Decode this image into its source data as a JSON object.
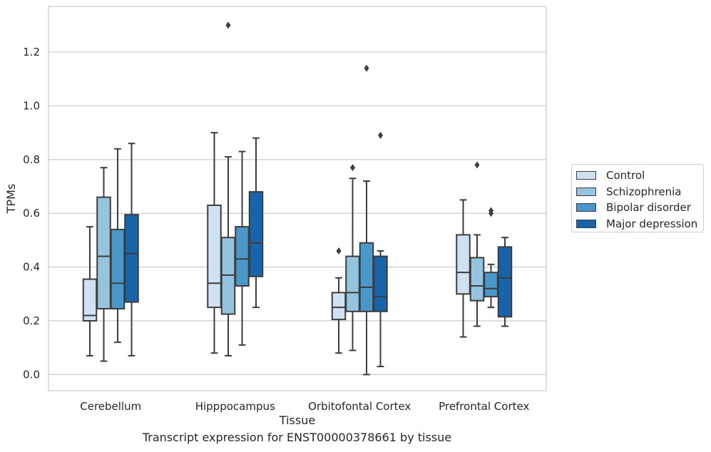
{
  "chart_data": {
    "type": "box",
    "title": "",
    "caption": "Transcript expression for ENST00000378661 by tissue",
    "xlabel": "Tissue",
    "ylabel": "TPMs",
    "ylim": [
      -0.06,
      1.37
    ],
    "yticks": [
      0.0,
      0.2,
      0.4,
      0.6,
      0.8,
      1.0,
      1.2
    ],
    "ytick_labels": [
      "0.0",
      "0.2",
      "0.4",
      "0.6",
      "0.8",
      "1.0",
      "1.2"
    ],
    "grid": "horizontal",
    "legend_position": "right",
    "categories": [
      "Cerebellum",
      "Hipppocampus",
      "Orbitofontal Cortex",
      "Prefrontal Cortex"
    ],
    "series": [
      {
        "name": "Control",
        "color": "#d0e1f2",
        "boxes": [
          {
            "whislo": 0.07,
            "q1": 0.2,
            "med": 0.22,
            "q3": 0.355,
            "whishi": 0.55,
            "fliers": []
          },
          {
            "whislo": 0.08,
            "q1": 0.25,
            "med": 0.34,
            "q3": 0.63,
            "whishi": 0.9,
            "fliers": []
          },
          {
            "whislo": 0.08,
            "q1": 0.205,
            "med": 0.25,
            "q3": 0.305,
            "whishi": 0.36,
            "fliers": [
              0.46
            ]
          },
          {
            "whislo": 0.14,
            "q1": 0.3,
            "med": 0.38,
            "q3": 0.52,
            "whishi": 0.65,
            "fliers": []
          }
        ]
      },
      {
        "name": "Schizophrenia",
        "color": "#94c4df",
        "boxes": [
          {
            "whislo": 0.05,
            "q1": 0.245,
            "med": 0.44,
            "q3": 0.66,
            "whishi": 0.77,
            "fliers": []
          },
          {
            "whislo": 0.07,
            "q1": 0.225,
            "med": 0.37,
            "q3": 0.51,
            "whishi": 0.81,
            "fliers": [
              1.3
            ]
          },
          {
            "whislo": 0.09,
            "q1": 0.235,
            "med": 0.305,
            "q3": 0.44,
            "whishi": 0.73,
            "fliers": [
              0.77
            ]
          },
          {
            "whislo": 0.18,
            "q1": 0.275,
            "med": 0.33,
            "q3": 0.435,
            "whishi": 0.52,
            "fliers": [
              0.78
            ]
          }
        ]
      },
      {
        "name": "Bipolar disorder",
        "color": "#4a98c9",
        "boxes": [
          {
            "whislo": 0.12,
            "q1": 0.245,
            "med": 0.34,
            "q3": 0.54,
            "whishi": 0.84,
            "fliers": []
          },
          {
            "whislo": 0.11,
            "q1": 0.33,
            "med": 0.43,
            "q3": 0.55,
            "whishi": 0.83,
            "fliers": []
          },
          {
            "whislo": 0.0,
            "q1": 0.235,
            "med": 0.325,
            "q3": 0.49,
            "whishi": 0.72,
            "fliers": [
              1.14
            ]
          },
          {
            "whislo": 0.25,
            "q1": 0.29,
            "med": 0.32,
            "q3": 0.38,
            "whishi": 0.41,
            "fliers": [
              0.6,
              0.61
            ]
          }
        ]
      },
      {
        "name": "Major depression",
        "color": "#1764ab",
        "boxes": [
          {
            "whislo": 0.07,
            "q1": 0.27,
            "med": 0.45,
            "q3": 0.595,
            "whishi": 0.86,
            "fliers": []
          },
          {
            "whislo": 0.25,
            "q1": 0.365,
            "med": 0.49,
            "q3": 0.68,
            "whishi": 0.88,
            "fliers": []
          },
          {
            "whislo": 0.03,
            "q1": 0.235,
            "med": 0.29,
            "q3": 0.44,
            "whishi": 0.46,
            "fliers": [
              0.89
            ]
          },
          {
            "whislo": 0.18,
            "q1": 0.215,
            "med": 0.36,
            "q3": 0.475,
            "whishi": 0.51,
            "fliers": []
          }
        ]
      }
    ]
  }
}
